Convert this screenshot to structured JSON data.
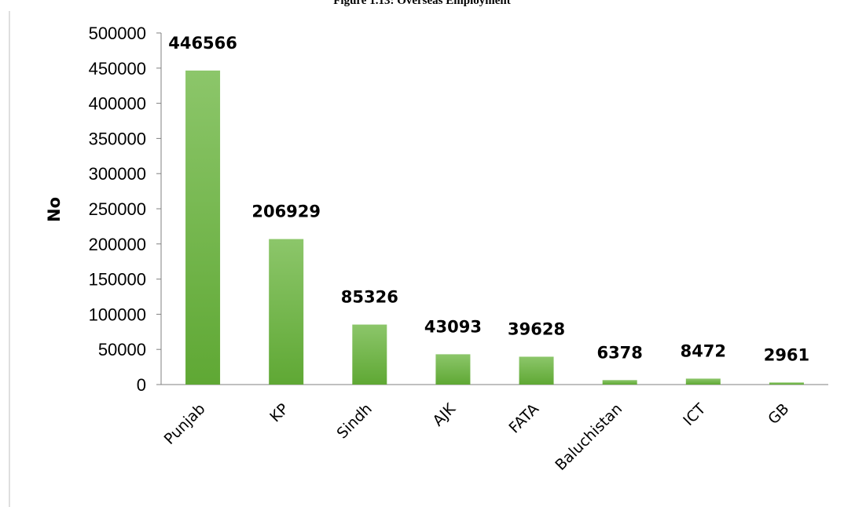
{
  "figure_title": "Figure 1.13: Overseas Employment",
  "chart_data": {
    "type": "bar",
    "categories": [
      "Punjab",
      "KP",
      "Sindh",
      "AJK",
      "FATA",
      "Baluchistan",
      "ICT",
      "GB"
    ],
    "values": [
      446566,
      206929,
      85326,
      43093,
      39628,
      6378,
      8472,
      2961
    ],
    "data_labels": [
      "446566",
      "206929",
      "85326",
      "43093",
      "39628",
      "6378",
      "8472",
      "2961"
    ],
    "title": "",
    "xlabel": "",
    "ylabel": "No",
    "ylim": [
      0,
      500000
    ],
    "yticks": [
      "0",
      "50000",
      "100000",
      "150000",
      "200000",
      "250000",
      "300000",
      "350000",
      "400000",
      "450000",
      "500000"
    ],
    "grid": false,
    "legend": "none",
    "bar_color": "#6db33f",
    "bar_color_light": "#8cc66a"
  }
}
